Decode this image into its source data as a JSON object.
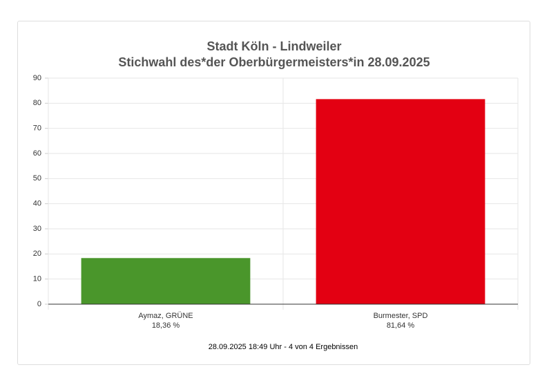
{
  "chart_data": {
    "type": "bar",
    "title": "Stadt Köln - Lindweiler",
    "subtitle": "Stichwahl des*der Oberbürgermeisters*in 28.09.2025",
    "categories": [
      "Aymaz, GRÜNE",
      "Burmester, SPD"
    ],
    "values": [
      18.36,
      81.64
    ],
    "value_labels": [
      "18,36 %",
      "81,64 %"
    ],
    "colors": [
      "#4a962b",
      "#e30012"
    ],
    "ylim": [
      0,
      90
    ],
    "yticks": [
      0,
      10,
      20,
      30,
      40,
      50,
      60,
      70,
      80,
      90
    ],
    "grid": true,
    "note": "28.09.2025 18:49 Uhr - 4 von 4 Ergebnissen"
  }
}
